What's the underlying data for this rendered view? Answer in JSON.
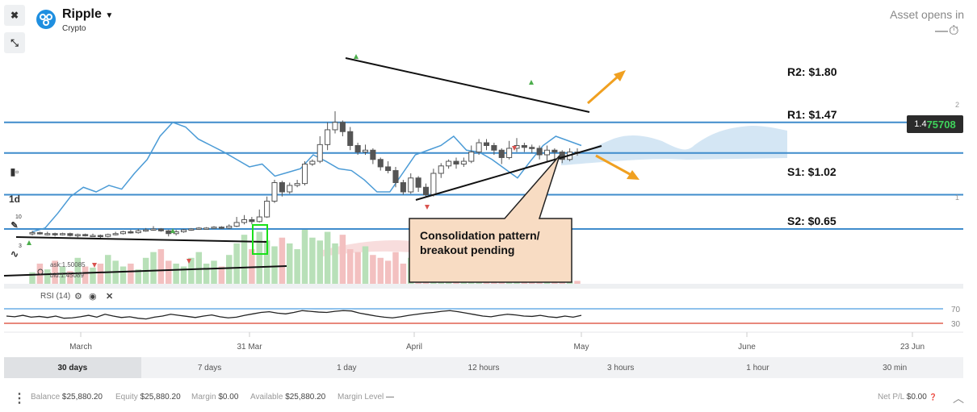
{
  "asset": {
    "name": "Ripple",
    "class": "Crypto",
    "opens_label": "Asset opens in"
  },
  "price": {
    "prefix": "1.4",
    "highlight": "75708"
  },
  "levels": [
    {
      "label": "R2: $1.80",
      "price": 1.8
    },
    {
      "label": "R1: $1.47",
      "price": 1.47
    },
    {
      "label": "S1: $1.02",
      "price": 1.02
    },
    {
      "label": "S2: $0.65",
      "price": 0.65
    }
  ],
  "annotation": {
    "text": "Consolidation pattern/ breakout pending"
  },
  "left_toolbar": {
    "interval": "1d",
    "indicator_count": "10",
    "sub_count": "3"
  },
  "bid_ask": {
    "ask": "ask:1.50085",
    "bid": "bid:1.45089"
  },
  "rsi": {
    "label": "RSI (14)",
    "upper": "70",
    "lower": "30"
  },
  "timeframes": [
    {
      "label": "30 days",
      "active": true
    },
    {
      "label": "7 days"
    },
    {
      "label": "1 day"
    },
    {
      "label": "12 hours"
    },
    {
      "label": "3 hours"
    },
    {
      "label": "1 hour"
    },
    {
      "label": "30 min"
    }
  ],
  "status": {
    "balance_label": "Balance",
    "balance": "$25,880.20",
    "equity_label": "Equity",
    "equity": "$25,880.20",
    "margin_label": "Margin",
    "margin": "$0.00",
    "available_label": "Available",
    "available": "$25,880.20",
    "margin_level_label": "Margin Level",
    "margin_level": "—",
    "netpl_label": "Net P/L",
    "netpl": "$0.00"
  },
  "colors": {
    "level_line": "#3f8ccc",
    "bull": "#ffffff",
    "bear": "#555555",
    "rsi_upper": "#6aaee6",
    "rsi_lower": "#e06050",
    "price_highlight": "#3fd35b"
  },
  "chart_data": {
    "type": "candlestick",
    "y_axis_ticks": [
      "2",
      "1"
    ],
    "x_tick_labels": [
      "March",
      "31 Mar",
      "April",
      "May",
      "June",
      "23 Jun"
    ],
    "candles": [
      [
        0.6,
        0.61,
        0.58,
        0.63
      ],
      [
        0.61,
        0.6,
        0.59,
        0.62
      ],
      [
        0.6,
        0.6,
        0.58,
        0.62
      ],
      [
        0.6,
        0.59,
        0.57,
        0.61
      ],
      [
        0.59,
        0.6,
        0.58,
        0.61
      ],
      [
        0.6,
        0.58,
        0.57,
        0.61
      ],
      [
        0.58,
        0.59,
        0.56,
        0.6
      ],
      [
        0.59,
        0.58,
        0.57,
        0.6
      ],
      [
        0.58,
        0.58,
        0.57,
        0.6
      ],
      [
        0.58,
        0.57,
        0.55,
        0.59
      ],
      [
        0.57,
        0.59,
        0.56,
        0.6
      ],
      [
        0.59,
        0.6,
        0.58,
        0.62
      ],
      [
        0.6,
        0.62,
        0.59,
        0.63
      ],
      [
        0.62,
        0.61,
        0.6,
        0.64
      ],
      [
        0.61,
        0.63,
        0.6,
        0.65
      ],
      [
        0.63,
        0.64,
        0.62,
        0.66
      ],
      [
        0.64,
        0.65,
        0.63,
        0.68
      ],
      [
        0.65,
        0.63,
        0.62,
        0.66
      ],
      [
        0.63,
        0.6,
        0.57,
        0.64
      ],
      [
        0.6,
        0.62,
        0.58,
        0.64
      ],
      [
        0.62,
        0.64,
        0.61,
        0.65
      ],
      [
        0.64,
        0.65,
        0.63,
        0.66
      ],
      [
        0.65,
        0.66,
        0.64,
        0.67
      ],
      [
        0.66,
        0.66,
        0.65,
        0.67
      ],
      [
        0.66,
        0.67,
        0.65,
        0.68
      ],
      [
        0.67,
        0.66,
        0.65,
        0.68
      ],
      [
        0.66,
        0.68,
        0.65,
        0.7
      ],
      [
        0.68,
        0.72,
        0.67,
        0.78
      ],
      [
        0.72,
        0.75,
        0.7,
        0.8
      ],
      [
        0.75,
        0.73,
        0.7,
        0.78
      ],
      [
        0.73,
        0.78,
        0.72,
        0.86
      ],
      [
        0.78,
        0.95,
        0.77,
        1.0
      ],
      [
        0.95,
        1.15,
        0.93,
        1.18
      ],
      [
        1.15,
        1.05,
        1.0,
        1.17
      ],
      [
        1.05,
        1.12,
        1.03,
        1.15
      ],
      [
        1.12,
        1.14,
        1.1,
        1.18
      ],
      [
        1.14,
        1.35,
        1.12,
        1.38
      ],
      [
        1.35,
        1.38,
        1.33,
        1.4
      ],
      [
        1.38,
        1.56,
        1.36,
        1.65
      ],
      [
        1.56,
        1.72,
        1.5,
        1.8
      ],
      [
        1.72,
        1.8,
        1.68,
        1.92
      ],
      [
        1.8,
        1.7,
        1.65,
        1.82
      ],
      [
        1.7,
        1.55,
        1.5,
        1.75
      ],
      [
        1.55,
        1.48,
        1.45,
        1.58
      ],
      [
        1.48,
        1.5,
        1.45,
        1.56
      ],
      [
        1.5,
        1.4,
        1.35,
        1.52
      ],
      [
        1.4,
        1.32,
        1.28,
        1.42
      ],
      [
        1.32,
        1.28,
        1.25,
        1.38
      ],
      [
        1.28,
        1.15,
        1.1,
        1.32
      ],
      [
        1.15,
        1.05,
        1.02,
        1.18
      ],
      [
        1.05,
        1.2,
        1.03,
        1.25
      ],
      [
        1.2,
        1.1,
        1.05,
        1.22
      ],
      [
        1.1,
        1.02,
        1.0,
        1.14
      ],
      [
        1.02,
        1.25,
        1.0,
        1.3
      ],
      [
        1.25,
        1.33,
        1.2,
        1.36
      ],
      [
        1.33,
        1.38,
        1.3,
        1.4
      ],
      [
        1.38,
        1.35,
        1.3,
        1.42
      ],
      [
        1.35,
        1.38,
        1.32,
        1.42
      ],
      [
        1.38,
        1.48,
        1.36,
        1.55
      ],
      [
        1.48,
        1.58,
        1.45,
        1.62
      ],
      [
        1.58,
        1.55,
        1.5,
        1.62
      ],
      [
        1.55,
        1.5,
        1.45,
        1.58
      ],
      [
        1.5,
        1.42,
        1.35,
        1.52
      ],
      [
        1.42,
        1.52,
        1.4,
        1.6
      ],
      [
        1.52,
        1.55,
        1.48,
        1.63
      ],
      [
        1.55,
        1.53,
        1.48,
        1.58
      ],
      [
        1.53,
        1.52,
        1.47,
        1.56
      ],
      [
        1.52,
        1.45,
        1.4,
        1.55
      ],
      [
        1.45,
        1.5,
        1.38,
        1.55
      ],
      [
        1.5,
        1.48,
        1.3,
        1.52
      ],
      [
        1.48,
        1.4,
        1.36,
        1.5
      ],
      [
        1.4,
        1.48,
        1.38,
        1.52
      ],
      [
        1.48,
        1.47,
        1.44,
        1.52
      ]
    ],
    "overlay_line": [
      0.62,
      0.66,
      0.82,
      1.0,
      1.1,
      1.05,
      1.12,
      1.08,
      1.25,
      1.4,
      1.65,
      1.8,
      1.75,
      1.62,
      1.55,
      1.48,
      1.4,
      1.32,
      1.35,
      1.22,
      1.26,
      1.3,
      1.45,
      1.38,
      1.3,
      1.28,
      1.18,
      1.05,
      1.05,
      1.25,
      1.45,
      1.5,
      1.55,
      1.65,
      1.5,
      1.48,
      1.4,
      1.3,
      1.2,
      1.38,
      1.55,
      1.65,
      1.6,
      1.55
    ],
    "rsi_values": [
      50,
      48,
      52,
      47,
      49,
      46,
      50,
      44,
      45,
      48,
      52,
      47,
      55,
      50,
      46,
      48,
      44,
      42,
      47,
      50,
      55,
      52,
      49,
      46,
      50,
      53,
      48,
      45,
      47,
      52,
      56,
      60,
      62,
      58,
      56,
      60,
      65,
      63,
      61,
      60,
      63,
      65,
      64,
      58,
      54,
      50,
      47,
      45,
      48,
      52,
      55,
      58,
      60,
      63,
      65,
      62,
      58,
      54,
      50,
      48,
      52,
      55,
      53,
      50,
      49,
      52,
      48,
      46,
      50,
      47,
      52
    ],
    "volumes": [
      20,
      35,
      25,
      40,
      30,
      22,
      45,
      30,
      28,
      35,
      50,
      40,
      30,
      35,
      25,
      45,
      55,
      60,
      40,
      35,
      30,
      45,
      55,
      35,
      40,
      30,
      50,
      70,
      85,
      60,
      90,
      75,
      65,
      80,
      70,
      60,
      95,
      80,
      75,
      90,
      70,
      85,
      60,
      55,
      65,
      50,
      45,
      40,
      55,
      35,
      45,
      30,
      40,
      25,
      30,
      20,
      35,
      25,
      20,
      15,
      18,
      12,
      15,
      10,
      12,
      8,
      10,
      6,
      8,
      5,
      6,
      4,
      5
    ]
  }
}
